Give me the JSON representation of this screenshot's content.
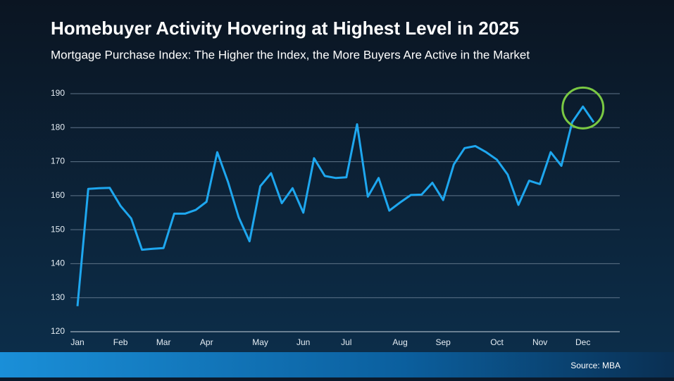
{
  "chart_data": {
    "type": "line",
    "title": "Homebuyer Activity Hovering at Highest Level in 2025",
    "subtitle": "Mortgage Purchase Index: The Higher the Index, the More Buyers Are Active in the Market",
    "source": "Source: MBA",
    "categories": [
      "Jan",
      null,
      null,
      null,
      "Feb",
      null,
      null,
      null,
      "Mar",
      null,
      null,
      null,
      "Apr",
      null,
      null,
      null,
      null,
      "May",
      null,
      null,
      null,
      "Jun",
      null,
      null,
      null,
      "Jul",
      null,
      null,
      null,
      null,
      "Aug",
      null,
      null,
      null,
      "Sep",
      null,
      null,
      null,
      null,
      "Oct",
      null,
      null,
      null,
      "Nov",
      null,
      null,
      null,
      "Dec",
      null
    ],
    "values": [
      127.5,
      162,
      162.2,
      162.3,
      157,
      153.3,
      144.1,
      144.4,
      144.6,
      154.7,
      154.7,
      155.8,
      158.2,
      172.8,
      164,
      153.6,
      146.6,
      162.8,
      166.6,
      157.8,
      162.2,
      155,
      171,
      165.8,
      165.2,
      165.4,
      181,
      159.7,
      165.2,
      155.6,
      158,
      160.2,
      160.3,
      163.8,
      158.7,
      169.2,
      174,
      174.6,
      172.8,
      170.6,
      166.2,
      157.3,
      164.4,
      163.4,
      172.8,
      168.8,
      181.6,
      186.2,
      181.6
    ],
    "color": "#1ea7ef",
    "ylim": [
      120,
      190
    ],
    "yticks": [
      120,
      130,
      140,
      150,
      160,
      170,
      180,
      190
    ],
    "grid": true
  }
}
